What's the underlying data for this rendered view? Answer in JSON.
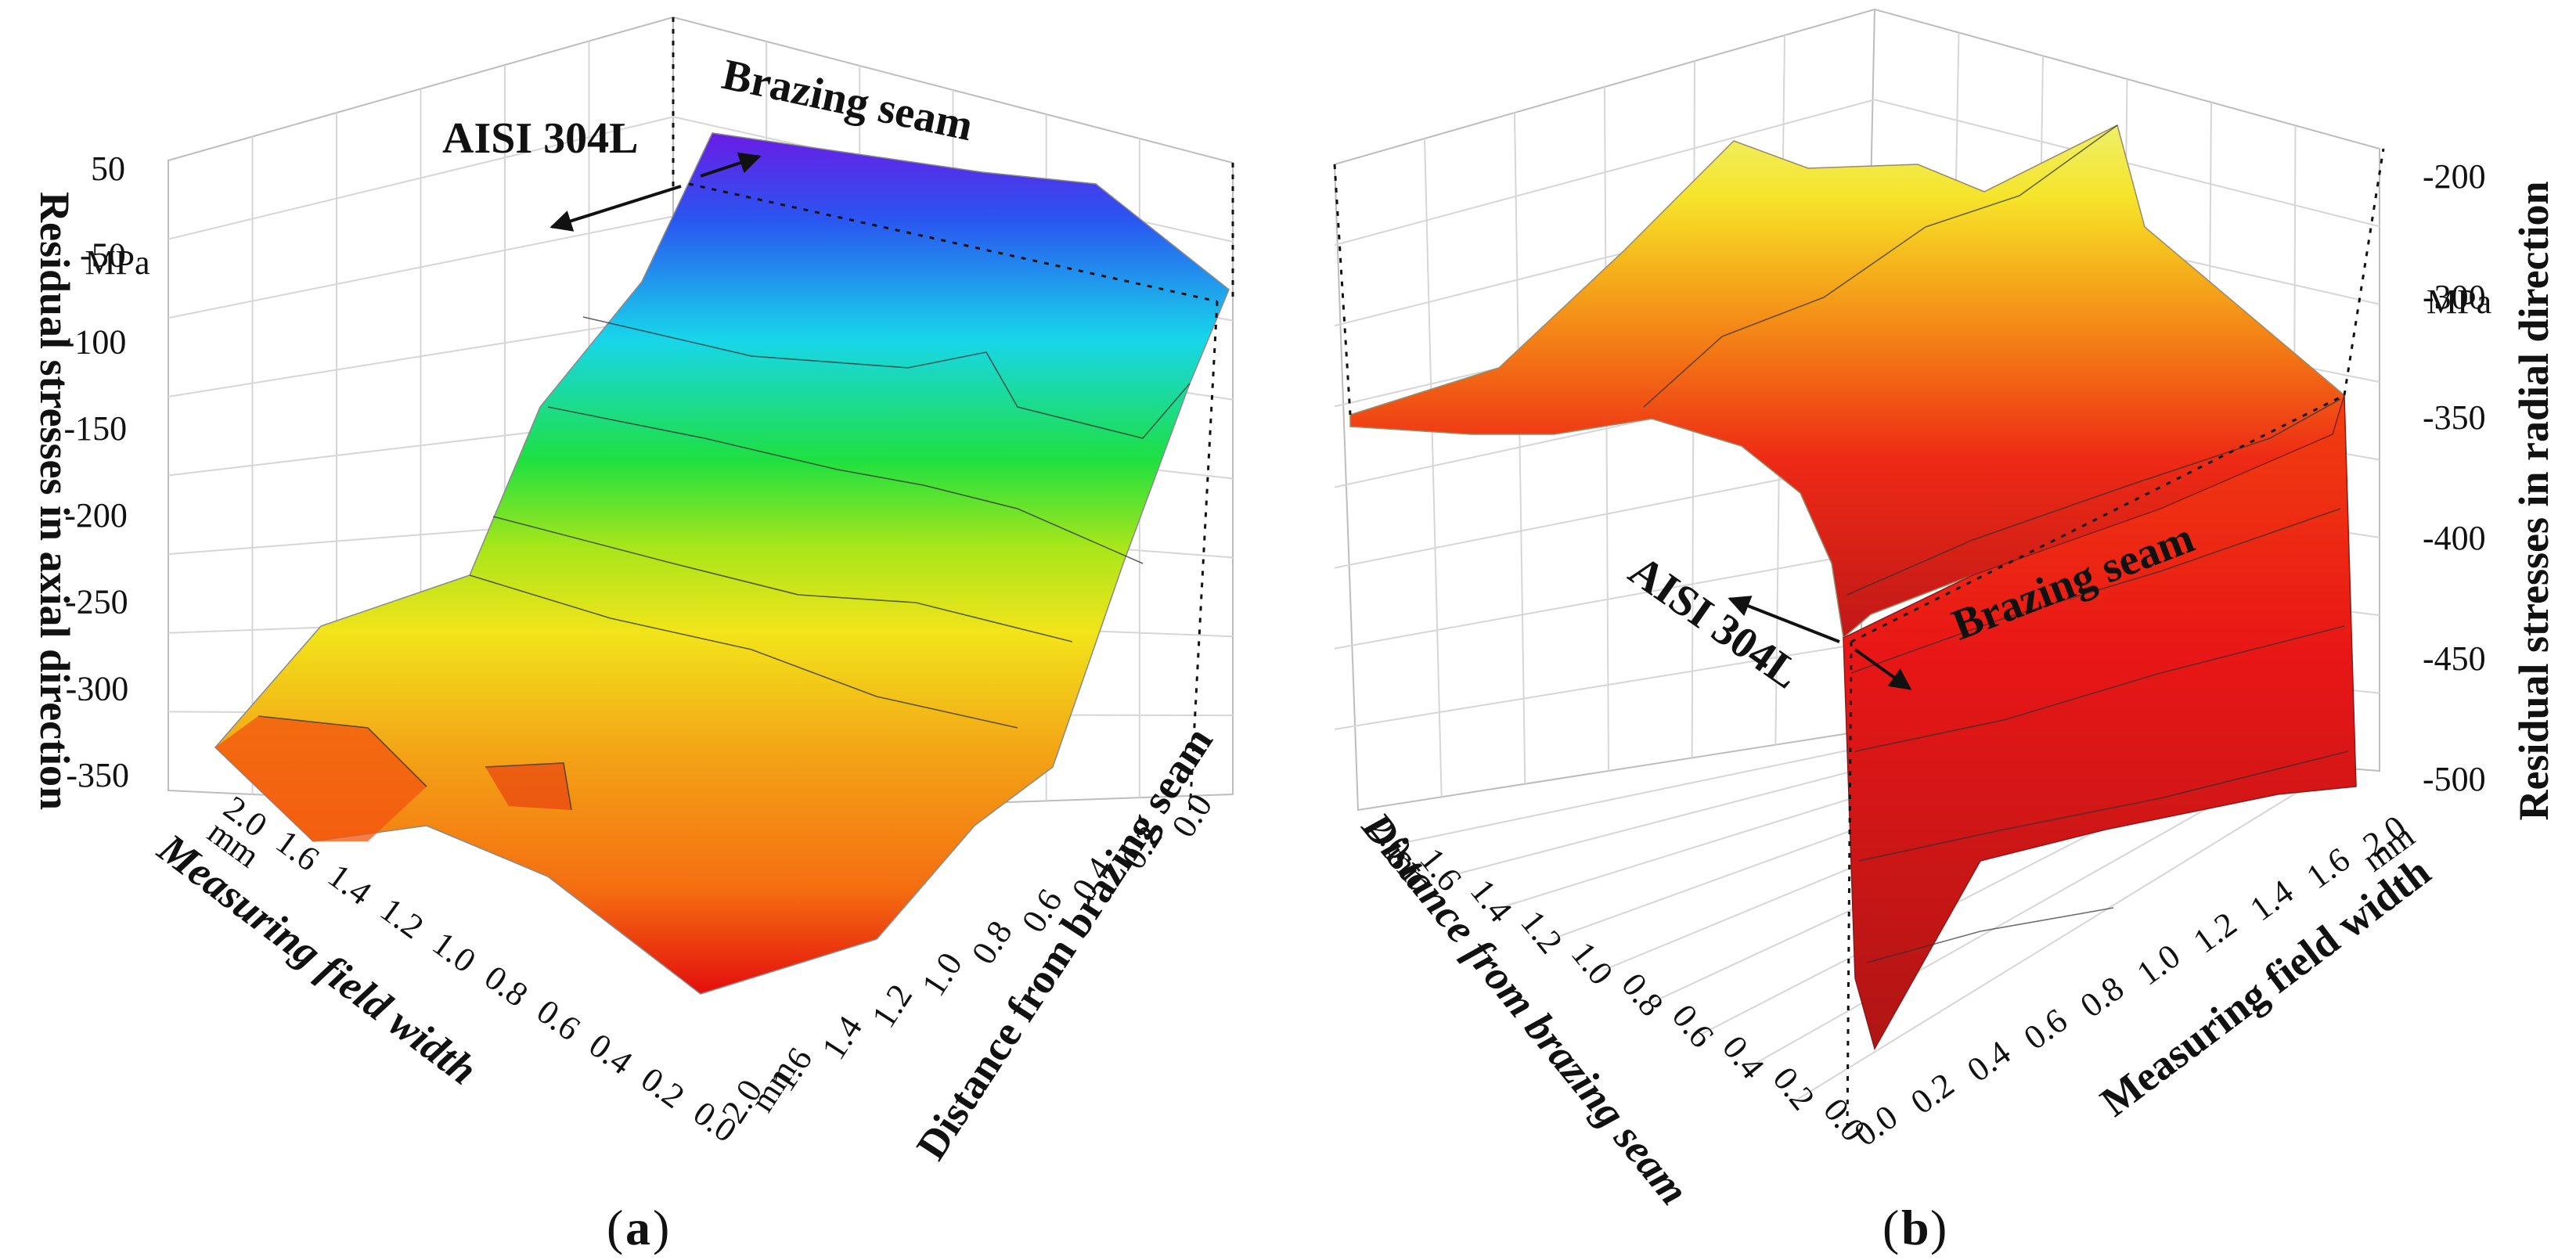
{
  "chart_data": [
    {
      "id": "a",
      "type": "surface3d",
      "caption_label": "a",
      "zlabel": "Residual stresses in axial direction",
      "zunit": "MPa",
      "zlim": [
        -350,
        50
      ],
      "z_ticks": [
        "50",
        "-50",
        "-100",
        "-150",
        "-200",
        "-250",
        "-300",
        "-350"
      ],
      "xlabel": "Measuring field width",
      "xunit": "mm",
      "x_ticks": [
        "0.0",
        "0.2",
        "0.4",
        "0.6",
        "0.8",
        "1.0",
        "1.2",
        "1.4",
        "1.6",
        "2.0"
      ],
      "ylabel": "Distance from brazing seam",
      "yunit": "mm",
      "y_ticks": [
        "0.0",
        "0.2",
        "0.4",
        "0.6",
        "0.8",
        "1.0",
        "1.2",
        "1.4",
        "1.6",
        "2.0"
      ],
      "annotations": [
        "AISI 304L",
        "Brazing seam"
      ],
      "surface_profile": {
        "distance_mm": [
          0.0,
          0.2,
          0.4,
          0.6,
          0.8,
          1.0,
          1.2,
          1.4,
          1.6,
          1.8,
          2.0
        ],
        "stress_mpa": [
          40,
          0,
          -60,
          -110,
          -160,
          -200,
          -240,
          -265,
          -285,
          -300,
          -320
        ]
      }
    },
    {
      "id": "b",
      "type": "surface3d",
      "caption_label": "b",
      "zlabel": "Residual stresses in radial direction",
      "zunit": "MPa",
      "zlim": [
        -500,
        -200
      ],
      "z_ticks": [
        "-200",
        "-300",
        "-350",
        "-400",
        "-450",
        "-500"
      ],
      "xlabel": "Measuring field width",
      "xunit": "mm",
      "x_ticks": [
        "0.0",
        "0.2",
        "0.4",
        "0.6",
        "0.8",
        "1.0",
        "1.2",
        "1.4",
        "1.6",
        "2.0"
      ],
      "ylabel": "Distance from brazing seam",
      "yunit": "mm",
      "y_ticks": [
        "2.0",
        "1.6",
        "1.4",
        "1.2",
        "1.0",
        "0.8",
        "0.6",
        "0.4",
        "0.2",
        "0.0"
      ],
      "annotations": [
        "AISI 304L",
        "Brazing seam"
      ],
      "surface_profile": {
        "distance_mm": [
          0.0,
          0.05,
          0.1,
          0.2,
          0.4,
          0.6,
          0.8,
          1.0,
          1.2,
          1.4,
          1.6,
          1.8,
          2.0
        ],
        "stress_mpa": [
          -480,
          -320,
          -290,
          -260,
          -240,
          -225,
          -215,
          -215,
          -230,
          -250,
          -270,
          -280,
          -285
        ]
      }
    }
  ]
}
